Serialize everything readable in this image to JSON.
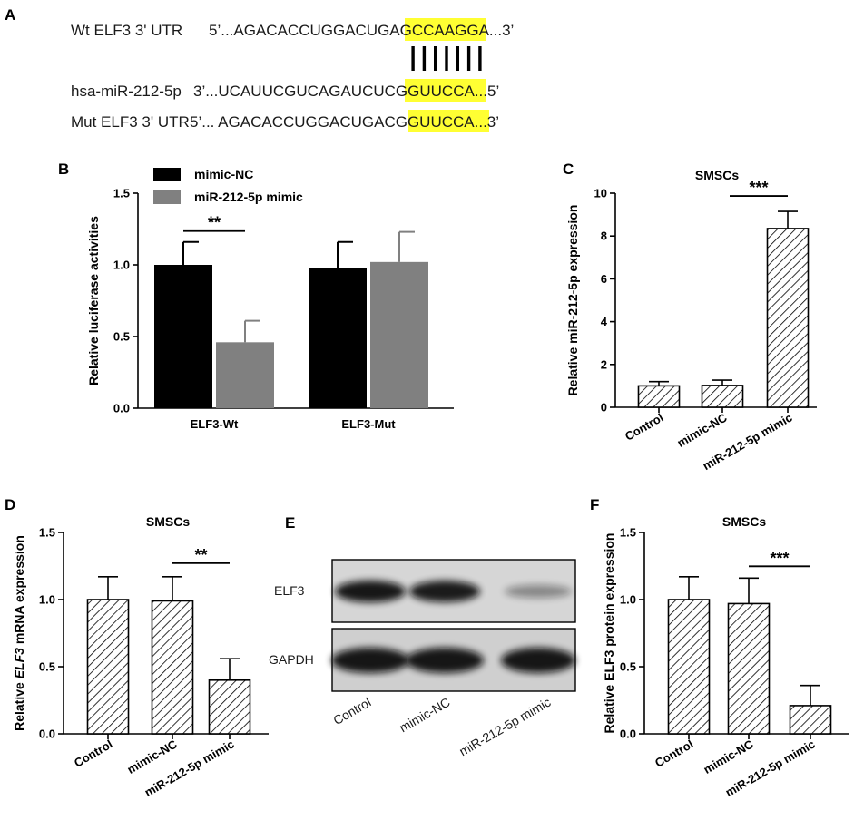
{
  "panels": {
    "A": "A",
    "B": "B",
    "C": "C",
    "D": "D",
    "E": "E",
    "F": "F"
  },
  "sequences": {
    "wt_label": "Wt ELF3 3' UTR",
    "wt_pre": "5’...AGACACCUGGACUGA",
    "wt_seed": "GCCAAGG",
    "wt_post": "A...3’",
    "mir_label": "hsa-miR-212-5p",
    "mir_pre": "3’...UCAUUCGUCAGAUCU",
    "mir_seed": "CGGUUCC",
    "mir_post": "A...5’",
    "mut_label": "Mut ELF3 3' UTR",
    "mut_pre": "5’... AGACACCUGGACUGA",
    "mut_seed": "CGGUUCC",
    "mut_post": "A...3’",
    "seed_highlight_color": "#ffff33",
    "pairing_lines": 7
  },
  "blot": {
    "bands": [
      "ELF3",
      "GAPDH"
    ],
    "lanes": [
      "Control",
      "mimic-NC",
      "miR-212-5p mimic"
    ],
    "elf3_intensity": [
      1.0,
      0.97,
      0.2
    ],
    "gapdh_intensity": [
      1.0,
      1.0,
      1.0
    ]
  },
  "chart_data": [
    {
      "panel": "B",
      "type": "bar",
      "title": "",
      "xlabel": "",
      "ylabel": "Relative luciferase activities",
      "ylim": [
        0,
        1.5
      ],
      "yticks": [
        "0.0",
        "0.5",
        "1.0",
        "1.5"
      ],
      "categories": [
        "ELF3-Wt",
        "ELF3-Mut"
      ],
      "series": [
        {
          "name": "mimic-NC",
          "values": [
            1.0,
            0.98
          ],
          "errors": [
            0.16,
            0.18
          ],
          "color": "#000000"
        },
        {
          "name": "miR-212-5p mimic",
          "values": [
            0.46,
            1.02
          ],
          "errors": [
            0.15,
            0.21
          ],
          "color": "#808080"
        }
      ],
      "legend_position": "top-left",
      "annotations": [
        {
          "text": "**",
          "between": [
            "ELF3-Wt mimic-NC",
            "ELF3-Wt miR-212-5p mimic"
          ]
        }
      ]
    },
    {
      "panel": "C",
      "type": "bar",
      "title": "SMSCs",
      "xlabel": "",
      "ylabel": "Relative miR-212-5p expression",
      "ylim": [
        0,
        10
      ],
      "yticks": [
        "0",
        "2",
        "4",
        "6",
        "8",
        "10"
      ],
      "categories": [
        "Control",
        "mimic-NC",
        "miR-212-5p mimic"
      ],
      "values": [
        1.0,
        1.02,
        8.35
      ],
      "errors": [
        0.2,
        0.25,
        0.8
      ],
      "pattern": "hatched",
      "annotations": [
        {
          "text": "***",
          "between": [
            "mimic-NC",
            "miR-212-5p mimic"
          ]
        }
      ]
    },
    {
      "panel": "D",
      "type": "bar",
      "title": "SMSCs",
      "xlabel": "",
      "ylabel_pre": "Relative ",
      "ylabel_italic": "ELF3",
      "ylabel_post": " mRNA expression",
      "ylim": [
        0,
        1.5
      ],
      "yticks": [
        "0.0",
        "0.5",
        "1.0",
        "1.5"
      ],
      "categories": [
        "Control",
        "mimic-NC",
        "miR-212-5p mimic"
      ],
      "values": [
        1.0,
        0.99,
        0.4
      ],
      "errors": [
        0.17,
        0.18,
        0.16
      ],
      "pattern": "hatched",
      "annotations": [
        {
          "text": "**",
          "between": [
            "mimic-NC",
            "miR-212-5p mimic"
          ]
        }
      ]
    },
    {
      "panel": "F",
      "type": "bar",
      "title": "SMSCs",
      "xlabel": "",
      "ylabel": "Relative ELF3 protein expression",
      "ylim": [
        0,
        1.5
      ],
      "yticks": [
        "0.0",
        "0.5",
        "1.0",
        "1.5"
      ],
      "categories": [
        "Control",
        "mimic-NC",
        "miR-212-5p mimic"
      ],
      "values": [
        1.0,
        0.97,
        0.21
      ],
      "errors": [
        0.17,
        0.19,
        0.15
      ],
      "pattern": "hatched",
      "annotations": [
        {
          "text": "***",
          "between": [
            "mimic-NC",
            "miR-212-5p mimic"
          ]
        }
      ]
    }
  ]
}
